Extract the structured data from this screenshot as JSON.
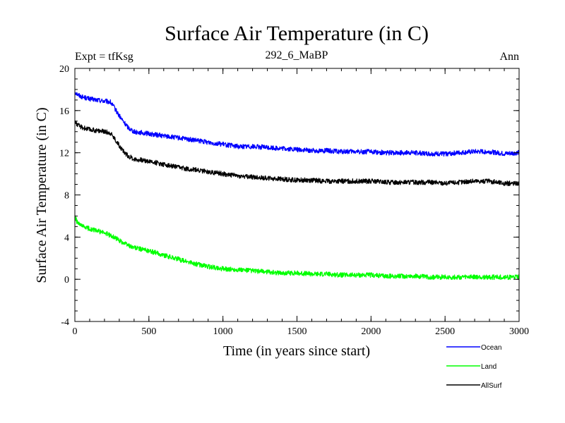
{
  "chart_data": {
    "type": "line",
    "title": "Surface Air Temperature (in C)",
    "subtitle_left": "Expt = tfKsg",
    "subtitle_center": "292_6_MaBP",
    "subtitle_right": "Ann",
    "xlabel": "Time (in years since start)",
    "ylabel": "Surface Air Temperature (in C)",
    "xlim": [
      0,
      3000
    ],
    "ylim": [
      -4,
      20
    ],
    "xticks": [
      0,
      500,
      1000,
      1500,
      2000,
      2500,
      3000
    ],
    "yticks": [
      -4,
      0,
      4,
      8,
      12,
      16,
      20
    ],
    "grid": false,
    "legend_position": "bottom-right below axes",
    "series": [
      {
        "name": "Ocean",
        "color": "#0000ff",
        "x": [
          0,
          20,
          50,
          100,
          150,
          200,
          240,
          270,
          300,
          330,
          360,
          400,
          450,
          500,
          600,
          700,
          800,
          900,
          1000,
          1100,
          1200,
          1300,
          1400,
          1500,
          1600,
          1700,
          1800,
          1900,
          2000,
          2100,
          2200,
          2300,
          2400,
          2500,
          2600,
          2700,
          2800,
          2900,
          3000
        ],
        "values": [
          17.8,
          17.5,
          17.3,
          17.1,
          17.0,
          16.9,
          16.8,
          16.2,
          15.5,
          14.9,
          14.4,
          14.0,
          13.9,
          13.8,
          13.6,
          13.4,
          13.2,
          13.0,
          12.8,
          12.6,
          12.6,
          12.5,
          12.4,
          12.3,
          12.2,
          12.2,
          12.1,
          12.1,
          12.1,
          12.0,
          12.0,
          12.0,
          11.9,
          11.9,
          12.0,
          12.1,
          12.1,
          11.9,
          12.0
        ]
      },
      {
        "name": "Land",
        "color": "#00ff00",
        "x": [
          0,
          20,
          50,
          100,
          150,
          200,
          250,
          300,
          350,
          400,
          500,
          600,
          700,
          800,
          900,
          1000,
          1100,
          1200,
          1300,
          1400,
          1500,
          1600,
          1700,
          1800,
          1900,
          2000,
          2100,
          2200,
          2300,
          2400,
          2500,
          2600,
          2700,
          2800,
          2900,
          3000
        ],
        "values": [
          5.9,
          5.3,
          5.0,
          4.8,
          4.6,
          4.4,
          4.1,
          3.7,
          3.3,
          3.0,
          2.7,
          2.3,
          1.9,
          1.5,
          1.2,
          1.0,
          0.9,
          0.8,
          0.7,
          0.6,
          0.6,
          0.5,
          0.5,
          0.4,
          0.4,
          0.4,
          0.3,
          0.3,
          0.3,
          0.2,
          0.2,
          0.2,
          0.2,
          0.2,
          0.2,
          0.2
        ]
      },
      {
        "name": "AllSurf",
        "color": "#000000",
        "x": [
          0,
          20,
          50,
          100,
          150,
          200,
          240,
          270,
          300,
          330,
          360,
          400,
          450,
          500,
          600,
          700,
          800,
          900,
          1000,
          1100,
          1200,
          1300,
          1400,
          1500,
          1600,
          1700,
          1800,
          1900,
          2000,
          2100,
          2200,
          2300,
          2400,
          2500,
          2600,
          2700,
          2800,
          2900,
          3000
        ],
        "values": [
          15.0,
          14.6,
          14.4,
          14.2,
          14.1,
          14.0,
          13.9,
          13.3,
          12.7,
          12.1,
          11.7,
          11.4,
          11.3,
          11.2,
          10.9,
          10.6,
          10.4,
          10.2,
          10.0,
          9.8,
          9.7,
          9.6,
          9.5,
          9.4,
          9.4,
          9.3,
          9.3,
          9.3,
          9.3,
          9.2,
          9.2,
          9.2,
          9.2,
          9.1,
          9.2,
          9.3,
          9.3,
          9.1,
          9.1
        ]
      }
    ]
  }
}
